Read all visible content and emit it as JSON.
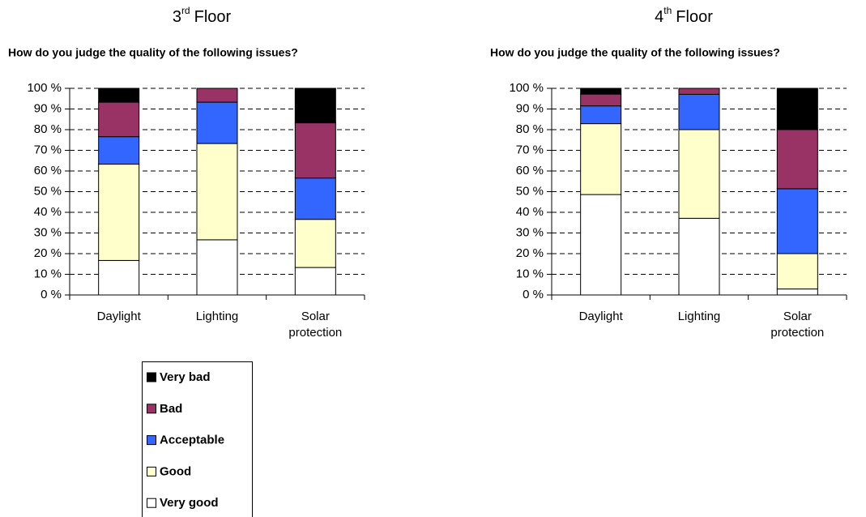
{
  "chart_data": [
    {
      "type": "stacked_bar",
      "title_number": "3",
      "title_suffix": "rd",
      "title_word": "Floor",
      "subtitle": "How do you judge the quality of the following issues?",
      "categories": [
        [
          "Daylight"
        ],
        [
          "Lighting"
        ],
        [
          "Solar",
          "protection"
        ]
      ],
      "series": [
        {
          "name": "Very good",
          "color": "#ffffff",
          "values": [
            16.7,
            26.7,
            13.3
          ]
        },
        {
          "name": "Good",
          "color": "#ffffcc",
          "values": [
            46.6,
            46.6,
            23.3
          ]
        },
        {
          "name": "Acceptable",
          "color": "#3366ff",
          "values": [
            13.3,
            20,
            20
          ]
        },
        {
          "name": "Bad",
          "color": "#993366",
          "values": [
            16.7,
            6.7,
            26.7
          ]
        },
        {
          "name": "Very bad",
          "color": "#000000",
          "values": [
            6.7,
            0,
            16.7
          ]
        }
      ],
      "ylim": [
        0,
        100
      ],
      "yticks": [
        {
          "value": 0,
          "label": "0 %"
        },
        {
          "value": 10,
          "label": "10 %"
        },
        {
          "value": 20,
          "label": "20 %"
        },
        {
          "value": 30,
          "label": "30 %"
        },
        {
          "value": 40,
          "label": "40 %"
        },
        {
          "value": 50,
          "label": "50 %"
        },
        {
          "value": 60,
          "label": "60 %"
        },
        {
          "value": 70,
          "label": "70 %"
        },
        {
          "value": 80,
          "label": "80 %"
        },
        {
          "value": 90,
          "label": "90 %"
        },
        {
          "value": 100,
          "label": "100 %"
        }
      ],
      "grid": true,
      "legend": true
    },
    {
      "type": "stacked_bar",
      "title_number": "4",
      "title_suffix": "th",
      "title_word": "Floor",
      "subtitle": "How do you judge the quality of the following issues?",
      "categories": [
        [
          "Daylight"
        ],
        [
          "Lighting"
        ],
        [
          "Solar",
          "protection"
        ]
      ],
      "series": [
        {
          "name": "Very good",
          "color": "#ffffff",
          "values": [
            48.6,
            37.1,
            2.9
          ]
        },
        {
          "name": "Good",
          "color": "#ffffcc",
          "values": [
            34.3,
            42.9,
            17.1
          ]
        },
        {
          "name": "Acceptable",
          "color": "#3366ff",
          "values": [
            8.6,
            17.1,
            31.4
          ]
        },
        {
          "name": "Bad",
          "color": "#993366",
          "values": [
            5.7,
            2.9,
            28.6
          ]
        },
        {
          "name": "Very bad",
          "color": "#000000",
          "values": [
            2.8,
            0,
            20
          ]
        }
      ],
      "ylim": [
        0,
        100
      ],
      "yticks": [
        {
          "value": 0,
          "label": "0 %"
        },
        {
          "value": 10,
          "label": "10 %"
        },
        {
          "value": 20,
          "label": "20 %"
        },
        {
          "value": 30,
          "label": "30 %"
        },
        {
          "value": 40,
          "label": "40 %"
        },
        {
          "value": 50,
          "label": "50 %"
        },
        {
          "value": 60,
          "label": "60 %"
        },
        {
          "value": 70,
          "label": "70 %"
        },
        {
          "value": 80,
          "label": "80 %"
        },
        {
          "value": 90,
          "label": "90 %"
        },
        {
          "value": 100,
          "label": "100 %"
        }
      ],
      "grid": true,
      "legend": false
    }
  ]
}
